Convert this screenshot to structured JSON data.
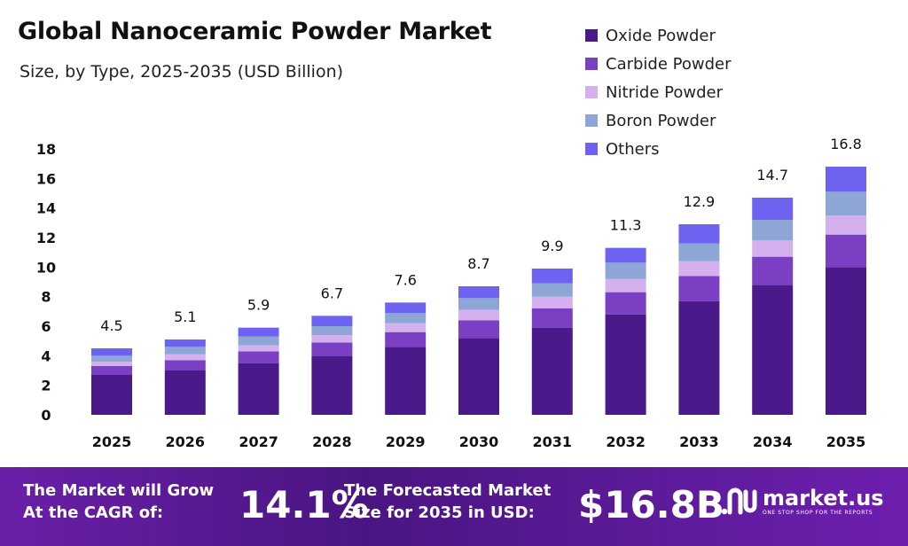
{
  "title": "Global Nanoceramic Powder Market",
  "subtitle": "Size, by Type, 2025-2035 (USD Billion)",
  "legend": [
    {
      "name": "Oxide Powder",
      "color": "#4a1a8a"
    },
    {
      "name": "Carbide Powder",
      "color": "#7b3fc4"
    },
    {
      "name": "Nitride Powder",
      "color": "#d4b0ee"
    },
    {
      "name": "Boron Powder",
      "color": "#8ea6d6"
    },
    {
      "name": "Others",
      "color": "#6e63f0"
    }
  ],
  "chart_data": {
    "type": "bar",
    "stacked": true,
    "title": "Global Nanoceramic Powder Market",
    "subtitle": "Size, by Type, 2025-2035 (USD Billion)",
    "categories": [
      "2025",
      "2026",
      "2027",
      "2028",
      "2029",
      "2030",
      "2031",
      "2032",
      "2033",
      "2034",
      "2035"
    ],
    "totals": [
      4.5,
      5.1,
      5.9,
      6.7,
      7.6,
      8.7,
      9.9,
      11.3,
      12.9,
      14.7,
      16.8
    ],
    "series": [
      {
        "name": "Oxide Powder",
        "color": "#4a1a8a",
        "values": [
          2.7,
          3.0,
          3.5,
          4.0,
          4.6,
          5.2,
          5.9,
          6.8,
          7.7,
          8.8,
          10.0
        ]
      },
      {
        "name": "Carbide Powder",
        "color": "#7b3fc4",
        "values": [
          0.6,
          0.7,
          0.8,
          0.9,
          1.0,
          1.2,
          1.3,
          1.5,
          1.7,
          1.9,
          2.2
        ]
      },
      {
        "name": "Nitride Powder",
        "color": "#d4b0ee",
        "values": [
          0.3,
          0.4,
          0.4,
          0.5,
          0.6,
          0.7,
          0.8,
          0.9,
          1.0,
          1.1,
          1.3
        ]
      },
      {
        "name": "Boron Powder",
        "color": "#8ea6d6",
        "values": [
          0.4,
          0.5,
          0.6,
          0.6,
          0.7,
          0.8,
          0.9,
          1.1,
          1.2,
          1.4,
          1.6
        ]
      },
      {
        "name": "Others",
        "color": "#6e63f0",
        "values": [
          0.5,
          0.5,
          0.6,
          0.7,
          0.7,
          0.8,
          1.0,
          1.0,
          1.3,
          1.5,
          1.7
        ]
      }
    ],
    "yticks": [
      0,
      2,
      4,
      6,
      8,
      10,
      12,
      14,
      16,
      18
    ],
    "ylim": [
      0,
      18
    ],
    "grid": false,
    "legend_position": "top-right"
  },
  "banner": {
    "cagr_text_line1": "The Market will Grow",
    "cagr_text_line2": "At the CAGR of:",
    "cagr_value": "14.1%",
    "forecast_text_line1": "The Forecasted Market",
    "forecast_text_line2": "Size for 2035 in USD:",
    "forecast_value": "$16.8B",
    "logo_name": "market.us",
    "logo_tagline": "ONE STOP SHOP FOR THE REPORTS",
    "background_color": "#5a1a96"
  }
}
